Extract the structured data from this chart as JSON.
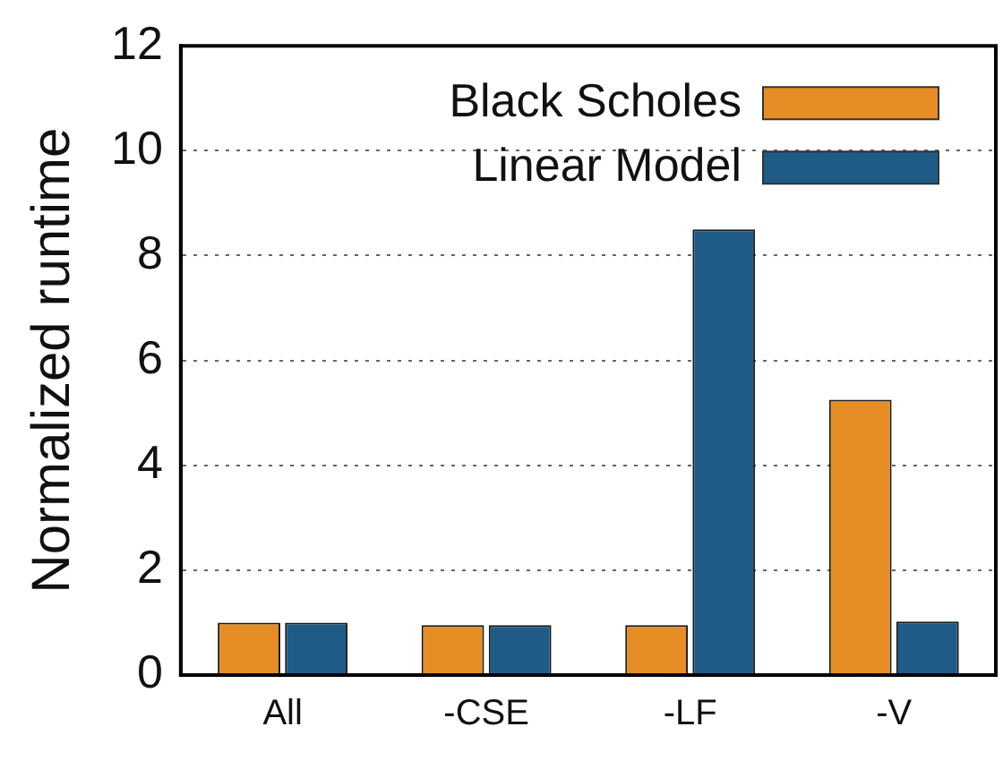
{
  "chart_data": {
    "type": "bar",
    "ylabel": "Normalized runtime",
    "categories": [
      "All",
      "-CSE",
      "-LF",
      "-V"
    ],
    "series": [
      {
        "name": "Black Scholes",
        "color": "#e68d25",
        "values": [
          1.0,
          0.95,
          0.95,
          5.25
        ]
      },
      {
        "name": "Linear Model",
        "color": "#1f5b87",
        "values": [
          1.0,
          0.95,
          8.5,
          1.02
        ]
      }
    ],
    "ylim": [
      0,
      12
    ],
    "yticks": [
      0,
      2,
      4,
      6,
      8,
      10,
      12
    ],
    "grid": "y",
    "legend": "top right"
  }
}
